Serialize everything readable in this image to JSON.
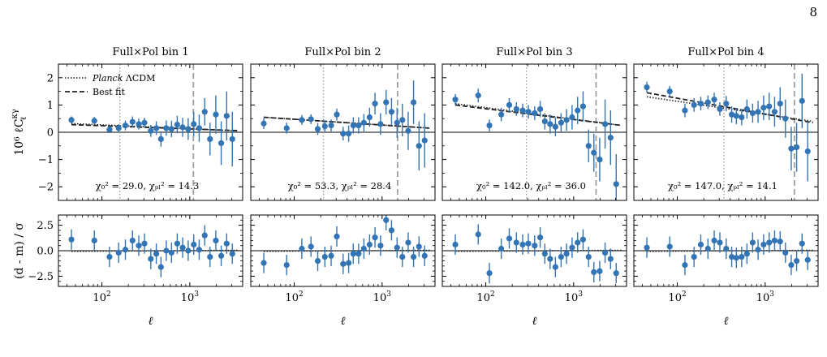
{
  "page_number": "8",
  "y_label_top": "10⁶ ℓC",
  "y_label_top_sup": "κγ",
  "y_label_top_sub": "ℓ",
  "y_label_bottom": "(d - m) / σ",
  "x_label": "ℓ",
  "legend": [
    {
      "label": "Planck ΛCDM",
      "style": "dotted"
    },
    {
      "label": "Best fit",
      "style": "dashed"
    }
  ],
  "colors": {
    "points": "#3274b4",
    "vline": "#9e9e9e",
    "model": "#222222"
  },
  "chart_data": [
    {
      "type": "scatter",
      "title": "Full×Pol bin 1",
      "xscale": "log",
      "xlim": [
        32,
        4000
      ],
      "ylim_top": [
        -2.5,
        2.5
      ],
      "ylim_bottom": [
        -3.5,
        3.5
      ],
      "chi2_text": "χ₀² = 29.0,  χₚₗ² = 14.3",
      "dotted_vline": 160,
      "dashed_vline": 1100,
      "planck_model": [
        [
          45,
          0.32
        ],
        [
          3500,
          0.05
        ]
      ],
      "bestfit_model": [
        [
          45,
          0.28
        ],
        [
          3500,
          0.06
        ]
      ],
      "points": [
        {
          "x": 45,
          "y": 0.45,
          "err": 0.13,
          "res": 1.1
        },
        {
          "x": 82,
          "y": 0.42,
          "err": 0.14,
          "res": 1.0
        },
        {
          "x": 122,
          "y": 0.1,
          "err": 0.13,
          "res": -0.6
        },
        {
          "x": 155,
          "y": 0.15,
          "err": 0.15,
          "res": -0.2
        },
        {
          "x": 185,
          "y": 0.25,
          "err": 0.18,
          "res": 0.1
        },
        {
          "x": 223,
          "y": 0.38,
          "err": 0.2,
          "res": 1.0
        },
        {
          "x": 263,
          "y": 0.3,
          "err": 0.2,
          "res": 0.5
        },
        {
          "x": 305,
          "y": 0.35,
          "err": 0.18,
          "res": 0.7
        },
        {
          "x": 360,
          "y": 0.05,
          "err": 0.22,
          "res": -0.8
        },
        {
          "x": 416,
          "y": 0.15,
          "err": 0.25,
          "res": -0.3
        },
        {
          "x": 470,
          "y": -0.25,
          "err": 0.28,
          "res": -1.6
        },
        {
          "x": 540,
          "y": 0.15,
          "err": 0.28,
          "res": 0.0
        },
        {
          "x": 620,
          "y": 0.12,
          "err": 0.3,
          "res": -0.2
        },
        {
          "x": 720,
          "y": 0.28,
          "err": 0.32,
          "res": 0.7
        },
        {
          "x": 830,
          "y": 0.18,
          "err": 0.35,
          "res": 0.3
        },
        {
          "x": 960,
          "y": 0.12,
          "err": 0.4,
          "res": 0.0
        },
        {
          "x": 1110,
          "y": 0.3,
          "err": 0.45,
          "res": 0.6
        },
        {
          "x": 1280,
          "y": 0.15,
          "err": 0.5,
          "res": 0.1
        },
        {
          "x": 1480,
          "y": 0.75,
          "err": 0.5,
          "res": 1.5
        },
        {
          "x": 1700,
          "y": -0.25,
          "err": 0.6,
          "res": -0.6
        },
        {
          "x": 1980,
          "y": 0.65,
          "err": 0.7,
          "res": 1.0
        },
        {
          "x": 2280,
          "y": -0.4,
          "err": 0.8,
          "res": -0.5
        },
        {
          "x": 2630,
          "y": 0.6,
          "err": 0.9,
          "res": 0.7
        },
        {
          "x": 3050,
          "y": -0.25,
          "err": 1.0,
          "res": -0.3
        }
      ]
    },
    {
      "type": "scatter",
      "title": "Full×Pol bin 2",
      "xscale": "log",
      "xlim": [
        32,
        4000
      ],
      "ylim_top": [
        -2.5,
        2.5
      ],
      "ylim_bottom": [
        -3.5,
        3.5
      ],
      "chi2_text": "χ₀² = 53.3,  χₚₗ² = 28.4",
      "dotted_vline": 215,
      "dashed_vline": 1500,
      "planck_model": [
        [
          45,
          0.55
        ],
        [
          3500,
          0.15
        ]
      ],
      "bestfit_model": [
        [
          45,
          0.55
        ],
        [
          3500,
          0.15
        ]
      ],
      "points": [
        {
          "x": 45,
          "y": 0.32,
          "err": 0.2,
          "res": -1.2
        },
        {
          "x": 82,
          "y": 0.15,
          "err": 0.2,
          "res": -1.4
        },
        {
          "x": 122,
          "y": 0.45,
          "err": 0.18,
          "res": 0.2
        },
        {
          "x": 155,
          "y": 0.48,
          "err": 0.18,
          "res": 0.4
        },
        {
          "x": 185,
          "y": 0.12,
          "err": 0.22,
          "res": -1.0
        },
        {
          "x": 223,
          "y": 0.22,
          "err": 0.22,
          "res": -0.6
        },
        {
          "x": 263,
          "y": 0.25,
          "err": 0.22,
          "res": -0.5
        },
        {
          "x": 305,
          "y": 0.65,
          "err": 0.22,
          "res": 1.4
        },
        {
          "x": 360,
          "y": -0.05,
          "err": 0.25,
          "res": -1.3
        },
        {
          "x": 416,
          "y": -0.05,
          "err": 0.3,
          "res": -1.2
        },
        {
          "x": 470,
          "y": 0.25,
          "err": 0.3,
          "res": -0.3
        },
        {
          "x": 540,
          "y": 0.25,
          "err": 0.3,
          "res": -0.3
        },
        {
          "x": 620,
          "y": 0.35,
          "err": 0.32,
          "res": 0.2
        },
        {
          "x": 720,
          "y": 0.55,
          "err": 0.35,
          "res": 0.6
        },
        {
          "x": 830,
          "y": 1.05,
          "err": 0.4,
          "res": 1.3
        },
        {
          "x": 960,
          "y": 0.3,
          "err": 0.4,
          "res": 0.5
        },
        {
          "x": 1110,
          "y": 1.1,
          "err": 0.45,
          "res": 3.0
        },
        {
          "x": 1280,
          "y": 0.75,
          "err": 0.5,
          "res": 2.0
        },
        {
          "x": 1480,
          "y": 0.35,
          "err": 0.55,
          "res": 0.3
        },
        {
          "x": 1700,
          "y": 0.45,
          "err": 0.6,
          "res": -0.6
        },
        {
          "x": 1980,
          "y": 0.05,
          "err": 0.7,
          "res": 0.8
        },
        {
          "x": 2280,
          "y": 1.1,
          "err": 0.8,
          "res": -0.6
        },
        {
          "x": 2630,
          "y": -0.5,
          "err": 0.9,
          "res": 0.4
        },
        {
          "x": 3050,
          "y": -0.3,
          "err": 1.0,
          "res": -0.5
        }
      ]
    },
    {
      "type": "scatter",
      "title": "Full×Pol bin 3",
      "xscale": "log",
      "xlim": [
        32,
        4000
      ],
      "ylim_top": [
        -2.5,
        2.5
      ],
      "ylim_bottom": [
        -3.5,
        3.5
      ],
      "chi2_text": "χ₀² = 142.0,  χₚₗ² = 36.0",
      "dotted_vline": 290,
      "dashed_vline": 1800,
      "planck_model": [
        [
          45,
          1.05
        ],
        [
          3500,
          0.25
        ]
      ],
      "bestfit_model": [
        [
          45,
          1.0
        ],
        [
          3500,
          0.25
        ]
      ],
      "points": [
        {
          "x": 45,
          "y": 1.2,
          "err": 0.2,
          "res": 0.6
        },
        {
          "x": 82,
          "y": 1.35,
          "err": 0.25,
          "res": 1.6
        },
        {
          "x": 110,
          "y": 0.25,
          "err": 0.22,
          "res": -2.2
        },
        {
          "x": 150,
          "y": 0.65,
          "err": 0.25,
          "res": 0.2
        },
        {
          "x": 185,
          "y": 1.0,
          "err": 0.25,
          "res": 1.2
        },
        {
          "x": 223,
          "y": 0.85,
          "err": 0.25,
          "res": 0.8
        },
        {
          "x": 263,
          "y": 0.8,
          "err": 0.25,
          "res": 0.6
        },
        {
          "x": 305,
          "y": 0.75,
          "err": 0.25,
          "res": 0.7
        },
        {
          "x": 360,
          "y": 0.7,
          "err": 0.25,
          "res": 0.5
        },
        {
          "x": 416,
          "y": 0.85,
          "err": 0.3,
          "res": 1.3
        },
        {
          "x": 470,
          "y": 0.4,
          "err": 0.3,
          "res": -0.3
        },
        {
          "x": 540,
          "y": 0.3,
          "err": 0.35,
          "res": -0.8
        },
        {
          "x": 620,
          "y": 0.2,
          "err": 0.35,
          "res": -1.6
        },
        {
          "x": 720,
          "y": 0.35,
          "err": 0.35,
          "res": -0.6
        },
        {
          "x": 830,
          "y": 0.45,
          "err": 0.4,
          "res": -0.3
        },
        {
          "x": 960,
          "y": 0.55,
          "err": 0.45,
          "res": 0.3
        },
        {
          "x": 1110,
          "y": 0.8,
          "err": 0.5,
          "res": 0.8
        },
        {
          "x": 1280,
          "y": 0.95,
          "err": 0.55,
          "res": 1.1
        },
        {
          "x": 1480,
          "y": -0.5,
          "err": 0.6,
          "res": -0.6
        },
        {
          "x": 1700,
          "y": -0.75,
          "err": 0.7,
          "res": -2.1
        },
        {
          "x": 1980,
          "y": -1.0,
          "err": 0.8,
          "res": -2.0
        },
        {
          "x": 2280,
          "y": 0.3,
          "err": 0.9,
          "res": -0.2
        },
        {
          "x": 2630,
          "y": -0.2,
          "err": 1.0,
          "res": -0.8
        },
        {
          "x": 3050,
          "y": -1.9,
          "err": 1.1,
          "res": -2.2
        }
      ]
    },
    {
      "type": "scatter",
      "title": "Full×Pol bin 4",
      "xscale": "log",
      "xlim": [
        32,
        4000
      ],
      "ylim_top": [
        -2.5,
        2.5
      ],
      "ylim_bottom": [
        -3.5,
        3.5
      ],
      "chi2_text": "χ₀² = 147.0,  χₚₗ² = 14.1",
      "dotted_vline": 340,
      "dashed_vline": 2150,
      "planck_model": [
        [
          45,
          1.3
        ],
        [
          3500,
          0.4
        ]
      ],
      "bestfit_model": [
        [
          45,
          1.45
        ],
        [
          3500,
          0.35
        ]
      ],
      "points": [
        {
          "x": 45,
          "y": 1.65,
          "err": 0.2,
          "res": 0.3
        },
        {
          "x": 82,
          "y": 1.5,
          "err": 0.2,
          "res": 0.4
        },
        {
          "x": 122,
          "y": 0.8,
          "err": 0.25,
          "res": -1.4
        },
        {
          "x": 155,
          "y": 1.0,
          "err": 0.25,
          "res": -0.6
        },
        {
          "x": 185,
          "y": 1.05,
          "err": 0.25,
          "res": 0.6
        },
        {
          "x": 223,
          "y": 1.1,
          "err": 0.25,
          "res": 0.2
        },
        {
          "x": 263,
          "y": 1.2,
          "err": 0.25,
          "res": 1.0
        },
        {
          "x": 305,
          "y": 0.85,
          "err": 0.25,
          "res": 0.8
        },
        {
          "x": 360,
          "y": 1.05,
          "err": 0.28,
          "res": 0.2
        },
        {
          "x": 416,
          "y": 0.65,
          "err": 0.3,
          "res": -0.6
        },
        {
          "x": 470,
          "y": 0.6,
          "err": 0.3,
          "res": -0.7
        },
        {
          "x": 540,
          "y": 0.55,
          "err": 0.3,
          "res": -0.6
        },
        {
          "x": 620,
          "y": 0.85,
          "err": 0.35,
          "res": -0.3
        },
        {
          "x": 720,
          "y": 0.7,
          "err": 0.35,
          "res": 0.8
        },
        {
          "x": 830,
          "y": 0.75,
          "err": 0.4,
          "res": 0.1
        },
        {
          "x": 960,
          "y": 0.9,
          "err": 0.45,
          "res": 0.6
        },
        {
          "x": 1110,
          "y": 0.95,
          "err": 0.5,
          "res": 0.8
        },
        {
          "x": 1280,
          "y": 0.75,
          "err": 0.55,
          "res": 1.0
        },
        {
          "x": 1480,
          "y": 1.05,
          "err": 0.6,
          "res": 0.9
        },
        {
          "x": 1700,
          "y": 0.5,
          "err": 0.7,
          "res": -0.2
        },
        {
          "x": 1980,
          "y": -0.6,
          "err": 0.8,
          "res": -1.4
        },
        {
          "x": 2280,
          "y": -0.55,
          "err": 0.9,
          "res": -1.0
        },
        {
          "x": 2630,
          "y": 1.15,
          "err": 1.0,
          "res": 0.7
        },
        {
          "x": 3050,
          "y": -0.7,
          "err": 1.1,
          "res": -0.9
        }
      ]
    }
  ]
}
